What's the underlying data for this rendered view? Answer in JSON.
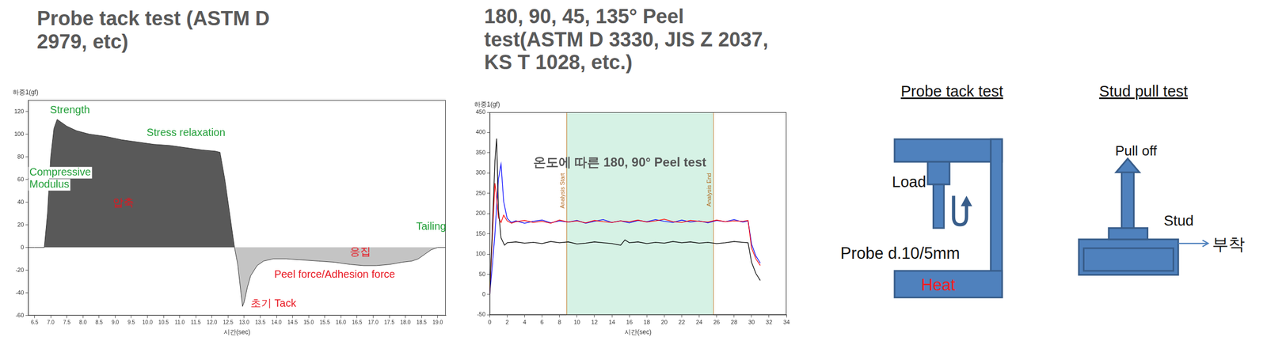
{
  "chart_data": [
    {
      "type": "line",
      "title": "Probe tack test (ASTM D 2979, etc)",
      "xlabel": "시간(sec)",
      "ylabel": "하중1(gf)",
      "x": [
        6.3,
        6.5,
        6.8,
        6.9,
        7.0,
        7.1,
        7.2,
        7.3,
        7.5,
        7.8,
        8.2,
        8.7,
        9.2,
        9.7,
        10.2,
        10.7,
        11.2,
        11.7,
        12.1,
        12.25,
        12.4,
        12.55,
        12.7,
        12.8,
        12.9,
        12.95,
        13.0,
        13.1,
        13.2,
        13.4,
        13.6,
        13.9,
        14.3,
        14.8,
        15.3,
        15.8,
        16.3,
        16.7,
        17.1,
        17.5,
        17.9,
        18.2,
        18.4,
        18.6,
        18.8,
        19.0,
        19.25
      ],
      "values": [
        0,
        0,
        0,
        30,
        80,
        105,
        113,
        111,
        107,
        103,
        100,
        98,
        95,
        93,
        91,
        90,
        88,
        86,
        85,
        84,
        60,
        30,
        0,
        -15,
        -40,
        -52,
        -48,
        -35,
        -25,
        -16,
        -12,
        -10,
        -10,
        -11,
        -12,
        -13,
        -15,
        -16,
        -16,
        -15,
        -13,
        -12,
        -10,
        -6,
        -2,
        0,
        0
      ],
      "color": "#595959",
      "xlim": [
        6.3,
        19.25
      ],
      "ylim": [
        -60,
        130
      ],
      "xticks": [
        6.5,
        {
          "value": 7,
          "label": "7.0"
        },
        7.5,
        {
          "value": 8,
          "label": "8.0"
        },
        8.5,
        {
          "value": 9,
          "label": "9.0"
        },
        9.5,
        {
          "value": 10,
          "label": "10.0"
        },
        10.5,
        {
          "value": 11,
          "label": "11.0"
        },
        11.5,
        {
          "value": 12,
          "label": "12.0"
        },
        12.5,
        {
          "value": 13,
          "label": "13.0"
        },
        13.5,
        {
          "value": 14,
          "label": "14.0"
        },
        14.5,
        {
          "value": 15,
          "label": "15.0"
        },
        15.5,
        {
          "value": 16,
          "label": "16.0"
        },
        16.5,
        {
          "value": 17,
          "label": "17.0"
        },
        17.5,
        {
          "value": 18,
          "label": "18.0"
        },
        18.5,
        {
          "value": 19,
          "label": "19.0"
        }
      ],
      "yticks": [
        -60,
        -40,
        -20,
        0,
        20,
        40,
        60,
        80,
        100,
        120
      ],
      "grid": false,
      "annotations": [
        "Strength",
        "Stress relaxation",
        "Compressive Modulus",
        "압축",
        "Tailing",
        "응집",
        "Peel force/Adhesion force",
        "초기 Tack"
      ]
    },
    {
      "type": "line",
      "title": "180, 90, 45, 135° Peel test(ASTM D 3330, JIS Z 2037, KS T 1028, etc.)",
      "xlabel": "시간(sec)",
      "ylabel": "하중1(gf)",
      "series": [
        {
          "color": "#000000",
          "x": [
            0,
            0.3,
            0.6,
            0.8,
            1.0,
            1.3,
            1.7,
            2,
            3,
            4,
            5,
            6,
            7,
            8,
            9,
            10,
            11,
            12,
            13,
            14,
            15,
            15.5,
            16,
            17,
            18,
            19,
            20,
            21,
            22,
            23,
            24,
            25,
            26,
            27,
            28,
            29,
            29.6,
            30,
            30.5,
            31
          ],
          "values": [
            0,
            160,
            330,
            385,
            210,
            140,
            122,
            128,
            130,
            127,
            129,
            126,
            131,
            128,
            130,
            125,
            127,
            130,
            128,
            126,
            122,
            135,
            128,
            130,
            126,
            129,
            127,
            131,
            128,
            130,
            127,
            129,
            126,
            128,
            131,
            129,
            128,
            80,
            52,
            35
          ]
        },
        {
          "color": "#ff0000",
          "x": [
            0,
            0.3,
            0.6,
            0.75,
            1.0,
            1.3,
            1.6,
            2,
            2.5,
            3,
            4,
            5,
            6,
            7,
            8,
            9,
            10,
            11,
            12,
            13,
            14,
            15,
            16,
            17,
            18,
            19,
            20,
            21,
            22,
            23,
            24,
            25,
            26,
            27,
            28,
            29,
            29.6,
            30,
            30.5,
            31
          ],
          "values": [
            0,
            140,
            275,
            250,
            190,
            178,
            196,
            182,
            176,
            180,
            183,
            178,
            181,
            176,
            184,
            179,
            182,
            177,
            183,
            180,
            178,
            182,
            180,
            184,
            179,
            182,
            186,
            180,
            178,
            183,
            181,
            179,
            184,
            180,
            182,
            181,
            183,
            115,
            88,
            72
          ]
        },
        {
          "color": "#0000ff",
          "x": [
            0,
            0.3,
            0.6,
            1.0,
            1.3,
            1.6,
            2,
            2.5,
            3,
            4,
            5,
            6,
            7,
            8,
            9,
            10,
            11,
            12,
            13,
            14,
            15,
            16,
            17,
            18,
            19,
            20,
            21,
            22,
            23,
            24,
            25,
            26,
            27,
            28,
            29,
            29.6,
            30,
            30.5,
            31
          ],
          "values": [
            0,
            70,
            150,
            285,
            322,
            230,
            188,
            178,
            182,
            176,
            181,
            184,
            177,
            182,
            179,
            183,
            176,
            181,
            185,
            178,
            182,
            177,
            183,
            180,
            185,
            181,
            178,
            184,
            179,
            182,
            177,
            183,
            180,
            185,
            179,
            182,
            125,
            95,
            78
          ]
        }
      ],
      "xlim": [
        0,
        34
      ],
      "ylim": [
        -50,
        450
      ],
      "xticks": [
        0,
        2,
        4,
        6,
        8,
        10,
        12,
        14,
        16,
        18,
        20,
        22,
        24,
        26,
        28,
        30,
        32,
        34
      ],
      "yticks": [
        -50,
        0,
        50,
        100,
        150,
        200,
        250,
        300,
        350,
        400,
        450
      ],
      "grid": false,
      "annotations": [
        "온도에 따른 180, 90° Peel test"
      ],
      "analysis_window": {
        "start": 8.8,
        "end": 25.6,
        "start_label": "Analysis Start",
        "end_label": "Analysis End"
      }
    }
  ],
  "diagrams": [
    {
      "title": "Probe tack test",
      "labels": {
        "load": "Load",
        "probe": "Probe d.10/5mm",
        "heat": "Heat"
      }
    },
    {
      "title": "Stud pull test",
      "labels": {
        "pull": "Pull off",
        "stud": "Stud",
        "attach": "부착"
      }
    }
  ]
}
